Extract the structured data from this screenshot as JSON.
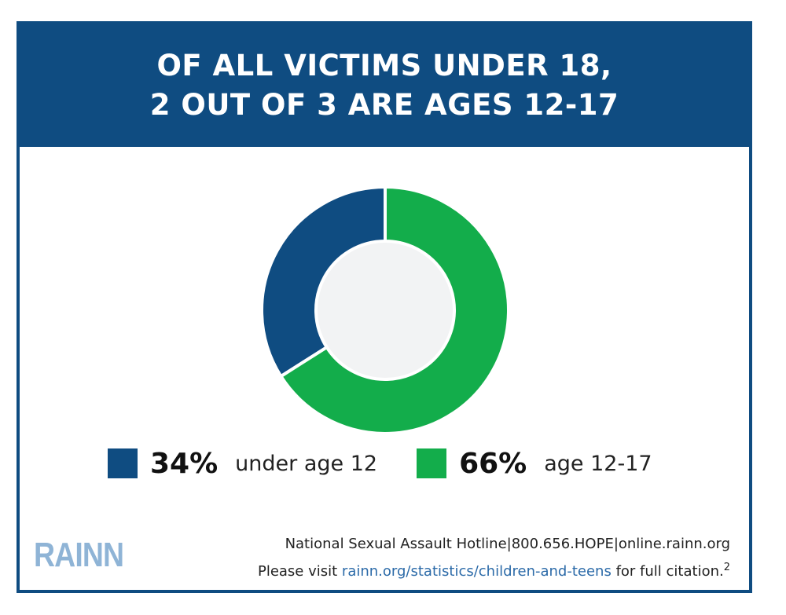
{
  "header": {
    "title_line1": "OF ALL VICTIMS UNDER 18,",
    "title_line2": "2 OUT OF 3 ARE AGES 12-17"
  },
  "colors": {
    "navy": "#0f4c81",
    "green": "#13ad4b",
    "hole": "#f2f3f4",
    "logo": "#8fb4d6"
  },
  "chart_data": {
    "type": "pie",
    "donut": true,
    "categories": [
      "under age 12",
      "age 12-17"
    ],
    "values": [
      34,
      66
    ],
    "value_labels": [
      "34%",
      "66%"
    ],
    "colors": [
      "#0f4c81",
      "#13ad4b"
    ],
    "legend_position": "bottom"
  },
  "legend": [
    {
      "pct": "34%",
      "label": "under age 12",
      "color": "#0f4c81"
    },
    {
      "pct": "66%",
      "label": "age 12-17",
      "color": "#13ad4b"
    }
  ],
  "footer": {
    "logo": "RAINN",
    "hotline": "National Sexual Assault Hotline|800.656.HOPE|online.rainn.org",
    "visit_prefix": "Please visit ",
    "visit_link": "rainn.org/statistics/children-and-teens",
    "visit_suffix": " for full citation.",
    "citation_number": "2"
  }
}
